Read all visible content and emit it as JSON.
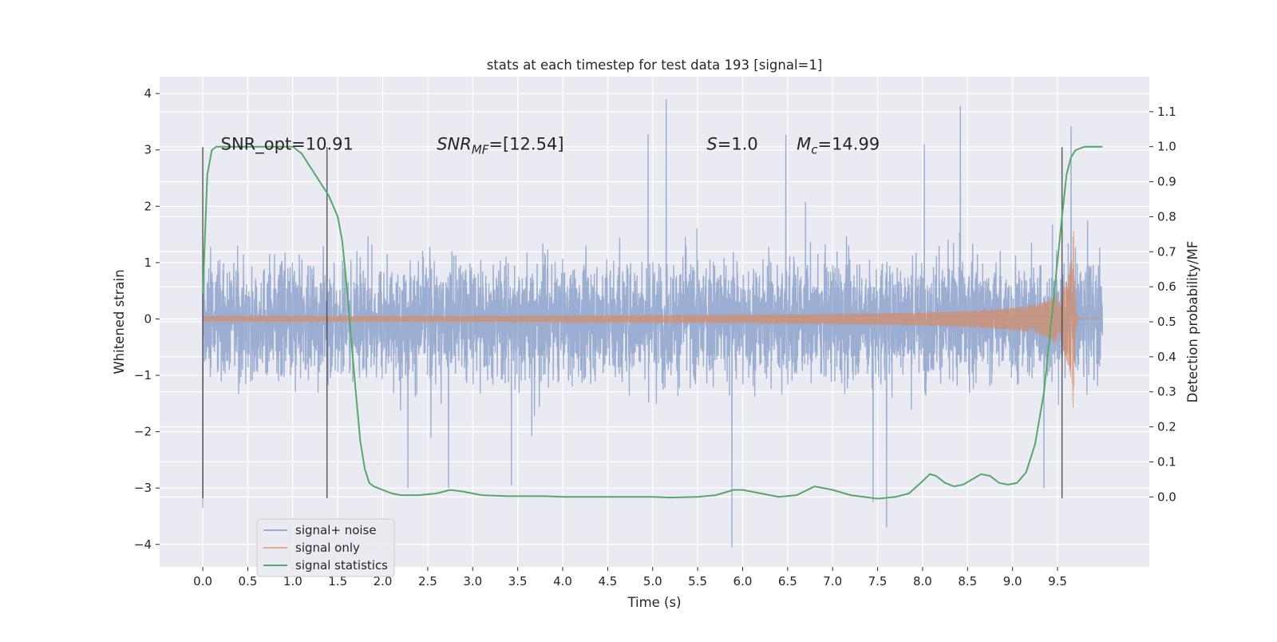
{
  "chart_data": {
    "type": "line",
    "title": "stats at each timestep for test data 193 [signal=1]",
    "xlabel": "Time (s)",
    "ylabel": "Whitened strain",
    "y2label": "Detection probability/MF",
    "xlim": [
      -0.48,
      10.52
    ],
    "ylim": [
      -4.4,
      4.3
    ],
    "y2lim": [
      -0.2,
      1.2
    ],
    "grid": true,
    "legend_position": "lower-left",
    "xticks": [
      0.0,
      0.5,
      1.0,
      1.5,
      2.0,
      2.5,
      3.0,
      3.5,
      4.0,
      4.5,
      5.0,
      5.5,
      6.0,
      6.5,
      7.0,
      7.5,
      8.0,
      8.5,
      9.0,
      9.5
    ],
    "xtick_labels": [
      "0.0",
      "0.5",
      "1.0",
      "1.5",
      "2.0",
      "2.5",
      "3.0",
      "3.5",
      "4.0",
      "4.5",
      "5.0",
      "5.5",
      "6.0",
      "6.5",
      "7.0",
      "7.5",
      "8.0",
      "8.5",
      "9.0",
      "9.5"
    ],
    "yticks": [
      -4,
      -3,
      -2,
      -1,
      0,
      1,
      2,
      3,
      4
    ],
    "ytick_labels": [
      "−4",
      "−3",
      "−2",
      "−1",
      "0",
      "1",
      "2",
      "3",
      "4"
    ],
    "y2ticks": [
      0.0,
      0.1,
      0.2,
      0.3,
      0.4,
      0.5,
      0.6,
      0.7,
      0.8,
      0.9,
      1.0,
      1.1
    ],
    "y2tick_labels": [
      "0.0",
      "0.1",
      "0.2",
      "0.3",
      "0.4",
      "0.5",
      "0.6",
      "0.7",
      "0.8",
      "0.9",
      "1.0",
      "1.1"
    ],
    "annotations": [
      {
        "base": "SNR_opt=10.91",
        "sub": "",
        "rest": "",
        "italic": false,
        "x": 0.2
      },
      {
        "base": "SNR",
        "sub": "MF",
        "rest": "=[12.54]",
        "italic": true,
        "x": 2.6
      },
      {
        "base": "S",
        "sub": "",
        "rest": "=1.0",
        "italic": true,
        "x": 5.6
      },
      {
        "base": "M",
        "sub": "c",
        "rest": "=14.99",
        "italic": true,
        "x": 6.6
      }
    ],
    "annotation_y": 3.0,
    "vlines": [
      {
        "x": 0.0,
        "ymin": -3.18,
        "ymax": 3.05
      },
      {
        "x": 1.38,
        "ymin": -3.18,
        "ymax": 3.05
      },
      {
        "x": 9.55,
        "ymin": -3.18,
        "ymax": 3.05
      }
    ],
    "series": [
      {
        "name": "signal+ noise",
        "color": "#4c72b0",
        "opacity": 0.5,
        "axis": "left",
        "kind": "noise",
        "x_range": [
          0.0,
          10.0
        ],
        "sample_rate": 512,
        "typical_range": [
          -1.6,
          1.6
        ],
        "peaks": [
          {
            "x": 0.0,
            "y": -3.35
          },
          {
            "x": 5.15,
            "y": 3.9
          },
          {
            "x": 8.42,
            "y": 3.78
          },
          {
            "x": 5.88,
            "y": -4.05
          },
          {
            "x": 7.6,
            "y": -3.7
          },
          {
            "x": 9.65,
            "y": 3.42
          },
          {
            "x": 4.95,
            "y": 3.28
          },
          {
            "x": 6.48,
            "y": 3.27
          },
          {
            "x": 2.73,
            "y": -3.0
          },
          {
            "x": 3.43,
            "y": -2.95
          },
          {
            "x": 9.35,
            "y": -3.0
          },
          {
            "x": 7.45,
            "y": -3.25
          },
          {
            "x": 2.28,
            "y": -3.0
          },
          {
            "x": 8.02,
            "y": 3.1
          }
        ]
      },
      {
        "name": "signal only",
        "color": "#dd8452",
        "opacity": 0.6,
        "axis": "left",
        "kind": "chirp",
        "x_range": [
          0.0,
          10.0
        ],
        "merger_time": 9.68,
        "peak_amplitude": 1.95
      },
      {
        "name": "signal statistics",
        "color": "#55a868",
        "opacity": 1.0,
        "axis": "right",
        "kind": "line",
        "x": [
          0.0,
          0.05,
          0.1,
          0.15,
          0.2,
          0.3,
          0.5,
          0.7,
          0.9,
          1.0,
          1.1,
          1.2,
          1.3,
          1.4,
          1.5,
          1.55,
          1.6,
          1.65,
          1.7,
          1.75,
          1.8,
          1.85,
          1.9,
          2.0,
          2.1,
          2.2,
          2.4,
          2.6,
          2.75,
          2.9,
          3.1,
          3.4,
          3.8,
          4.0,
          4.4,
          4.8,
          5.0,
          5.2,
          5.5,
          5.7,
          5.9,
          6.0,
          6.2,
          6.4,
          6.6,
          6.8,
          7.0,
          7.2,
          7.5,
          7.7,
          7.85,
          8.0,
          8.08,
          8.15,
          8.25,
          8.35,
          8.45,
          8.55,
          8.65,
          8.75,
          8.85,
          8.95,
          9.05,
          9.15,
          9.25,
          9.35,
          9.45,
          9.55,
          9.6,
          9.65,
          9.7,
          9.8,
          10.0
        ],
        "y": [
          0.58,
          0.92,
          0.99,
          1.0,
          1.0,
          1.0,
          1.0,
          1.0,
          1.0,
          1.0,
          0.98,
          0.94,
          0.9,
          0.86,
          0.8,
          0.73,
          0.6,
          0.45,
          0.3,
          0.16,
          0.08,
          0.04,
          0.03,
          0.02,
          0.01,
          0.005,
          0.005,
          0.01,
          0.02,
          0.015,
          0.005,
          0.002,
          0.002,
          0.0,
          0.0,
          0.0,
          0.0,
          -0.002,
          0.0,
          0.005,
          0.02,
          0.02,
          0.01,
          0.0,
          0.005,
          0.03,
          0.02,
          0.005,
          -0.005,
          0.0,
          0.01,
          0.045,
          0.065,
          0.06,
          0.04,
          0.03,
          0.035,
          0.05,
          0.065,
          0.06,
          0.04,
          0.035,
          0.04,
          0.07,
          0.15,
          0.3,
          0.55,
          0.8,
          0.92,
          0.97,
          0.99,
          1.0,
          1.0
        ]
      }
    ]
  }
}
